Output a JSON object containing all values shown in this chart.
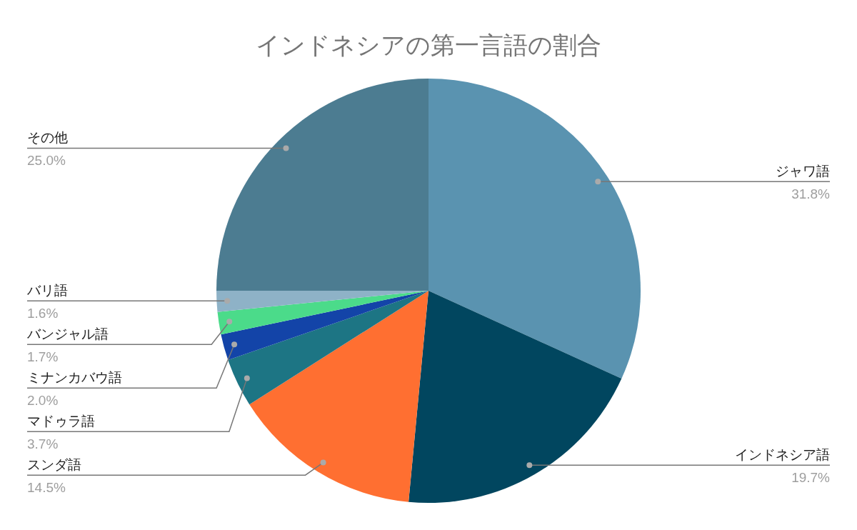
{
  "chart_data": {
    "type": "pie",
    "title": "インドネシアの第一言語の割合",
    "categories": [
      "ジャワ語",
      "インドネシア語",
      "スンダ語",
      "マドゥラ語",
      "ミナンカバウ語",
      "バンジャル語",
      "バリ語",
      "その他"
    ],
    "values": [
      31.8,
      19.7,
      14.5,
      3.7,
      2.0,
      1.7,
      1.6,
      25.0
    ],
    "colors": [
      "#5a93b0",
      "#01465f",
      "#ff6f31",
      "#1d7584",
      "#1344a8",
      "#4bdb8a",
      "#8eb2c7",
      "#4c7c91"
    ],
    "value_labels": [
      "31.8%",
      "19.7%",
      "14.5%",
      "3.7%",
      "2.0%",
      "1.7%",
      "1.6%",
      "25.0%"
    ]
  }
}
